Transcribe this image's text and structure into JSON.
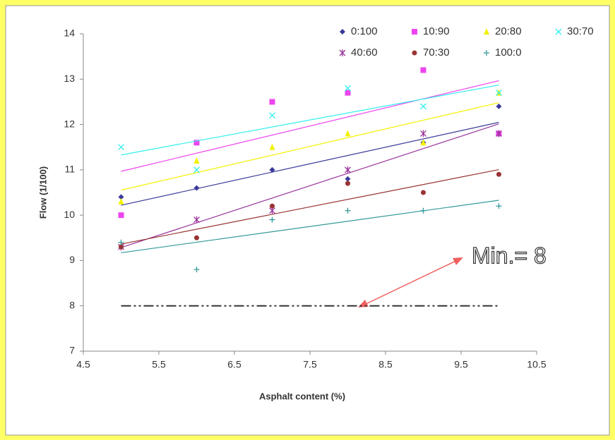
{
  "chart_data": {
    "type": "scatter",
    "x_label": "Asphalt content (%)",
    "y_label": "Flow (1/100)",
    "x": [
      5,
      6,
      7,
      8,
      9,
      10
    ],
    "series": [
      {
        "name": "0:100",
        "color": "#3a3a99",
        "marker": "diamond",
        "values": [
          10.4,
          10.6,
          11.0,
          10.8,
          11.6,
          12.4
        ]
      },
      {
        "name": "10:90",
        "color": "#ee44ee",
        "marker": "square",
        "values": [
          10.0,
          11.6,
          12.5,
          12.7,
          13.2,
          11.8
        ]
      },
      {
        "name": "20:80",
        "color": "#f2f200",
        "marker": "triangle",
        "values": [
          10.3,
          11.2,
          11.5,
          11.8,
          11.6,
          12.7
        ]
      },
      {
        "name": "30:70",
        "color": "#33eeee",
        "marker": "cross",
        "values": [
          11.5,
          11.0,
          12.2,
          12.8,
          12.4,
          12.7
        ]
      },
      {
        "name": "40:60",
        "color": "#993399",
        "marker": "star",
        "values": [
          9.3,
          9.9,
          10.1,
          11.0,
          11.8,
          11.8
        ]
      },
      {
        "name": "70:30",
        "color": "#993333",
        "marker": "circle",
        "values": [
          9.3,
          9.5,
          10.2,
          10.7,
          10.5,
          10.9
        ]
      },
      {
        "name": "100:0",
        "color": "#339999",
        "marker": "plus",
        "values": [
          9.4,
          8.8,
          9.9,
          10.1,
          10.1,
          10.2
        ]
      }
    ],
    "trendline": true,
    "reference_line": {
      "y": 8,
      "x": [
        5,
        10
      ],
      "color": "#333333"
    },
    "annotation": "Min.= 8",
    "xlim": [
      4.5,
      10.5
    ],
    "xticks": [
      4.5,
      5.5,
      6.5,
      7.5,
      8.5,
      9.5,
      10.5
    ],
    "ylim": [
      7,
      14
    ],
    "yticks": [
      7,
      8,
      9,
      10,
      11,
      12,
      13,
      14
    ],
    "legend": "top-right"
  }
}
